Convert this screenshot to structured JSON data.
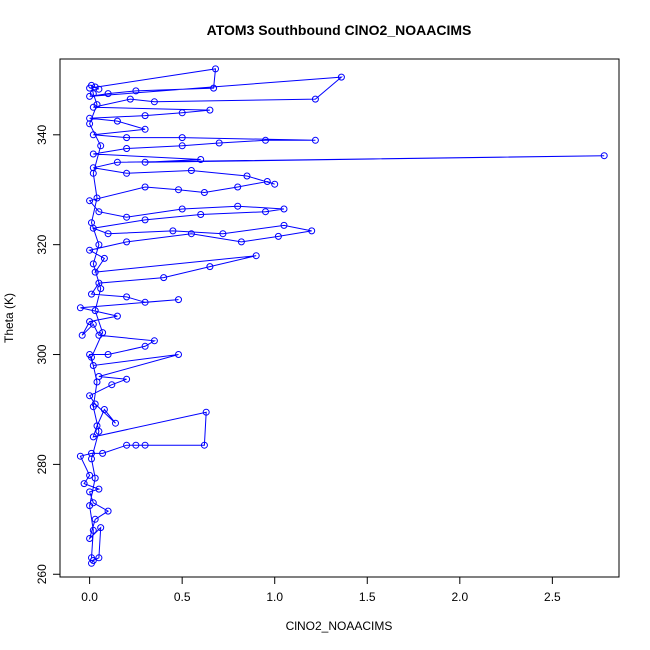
{
  "chart_data": {
    "type": "scatter",
    "title": "ATOM3 Southbound ClNO2_NOAACIMS",
    "xlabel": "ClNO2_NOAACIMS",
    "ylabel": "Theta (K)",
    "xlim": [
      -0.16,
      2.86
    ],
    "ylim": [
      259.5,
      353.8
    ],
    "x_ticks": [
      "0.0",
      "0.5",
      "1.0",
      "1.5",
      "2.0",
      "2.5"
    ],
    "y_ticks": [
      "260",
      "280",
      "300",
      "320",
      "340"
    ],
    "x_tick_values": [
      0,
      0.5,
      1.0,
      1.5,
      2.0,
      2.5
    ],
    "y_tick_values": [
      260,
      280,
      300,
      320,
      340
    ],
    "grid": false,
    "marker": "open-circle",
    "line": "connected",
    "color": "#0000ff",
    "points": [
      [
        0.01,
        262.0
      ],
      [
        0.02,
        262.5
      ],
      [
        0.05,
        263.0
      ],
      [
        0.06,
        268.5
      ],
      [
        0.0,
        266.5
      ],
      [
        0.03,
        270.0
      ],
      [
        0.1,
        271.5
      ],
      [
        0.02,
        273.0
      ],
      [
        0.0,
        275.0
      ],
      [
        0.05,
        275.5
      ],
      [
        -0.03,
        276.5
      ],
      [
        0.0,
        278.0
      ],
      [
        -0.05,
        281.5
      ],
      [
        0.01,
        282.0
      ],
      [
        0.07,
        282.0
      ],
      [
        0.2,
        283.5
      ],
      [
        0.25,
        283.5
      ],
      [
        0.3,
        283.5
      ],
      [
        0.62,
        283.5
      ],
      [
        0.63,
        289.5
      ],
      [
        0.02,
        285.0
      ],
      [
        0.04,
        287.0
      ],
      [
        0.08,
        290.0
      ],
      [
        0.14,
        287.5
      ],
      [
        0.03,
        291.0
      ],
      [
        0.0,
        292.5
      ],
      [
        0.12,
        294.5
      ],
      [
        0.2,
        295.5
      ],
      [
        0.05,
        296.0
      ],
      [
        0.48,
        300.0
      ],
      [
        0.02,
        298.0
      ],
      [
        0.0,
        300.0
      ],
      [
        0.1,
        300.0
      ],
      [
        0.3,
        301.5
      ],
      [
        0.35,
        302.5
      ],
      [
        0.05,
        303.5
      ],
      [
        0.02,
        305.5
      ],
      [
        -0.04,
        303.5
      ],
      [
        0.0,
        306.0
      ],
      [
        0.15,
        307.0
      ],
      [
        -0.05,
        308.5
      ],
      [
        0.48,
        310.0
      ],
      [
        0.3,
        309.5
      ],
      [
        0.2,
        310.5
      ],
      [
        0.01,
        311.0
      ],
      [
        0.05,
        313.0
      ],
      [
        0.4,
        314.0
      ],
      [
        0.65,
        316.0
      ],
      [
        0.9,
        318.0
      ],
      [
        0.03,
        315.0
      ],
      [
        0.08,
        317.5
      ],
      [
        0.0,
        319.0
      ],
      [
        0.2,
        320.5
      ],
      [
        0.55,
        322.0
      ],
      [
        0.82,
        320.5
      ],
      [
        1.02,
        321.5
      ],
      [
        1.2,
        322.5
      ],
      [
        1.05,
        323.5
      ],
      [
        0.72,
        322.0
      ],
      [
        0.45,
        322.5
      ],
      [
        0.1,
        322.0
      ],
      [
        0.02,
        323.0
      ],
      [
        0.3,
        324.5
      ],
      [
        0.6,
        325.5
      ],
      [
        0.95,
        326.0
      ],
      [
        1.05,
        326.5
      ],
      [
        0.8,
        327.0
      ],
      [
        0.5,
        326.5
      ],
      [
        0.2,
        325.0
      ],
      [
        0.05,
        326.0
      ],
      [
        0.0,
        328.0
      ],
      [
        0.3,
        330.5
      ],
      [
        0.48,
        330.0
      ],
      [
        0.62,
        329.5
      ],
      [
        0.8,
        330.5
      ],
      [
        0.96,
        331.5
      ],
      [
        1.0,
        331.0
      ],
      [
        0.85,
        332.5
      ],
      [
        0.55,
        333.5
      ],
      [
        0.2,
        333.0
      ],
      [
        0.02,
        334.0
      ],
      [
        0.15,
        335.0
      ],
      [
        2.78,
        336.2
      ],
      [
        0.3,
        335.0
      ],
      [
        0.6,
        335.5
      ],
      [
        0.02,
        336.5
      ],
      [
        0.2,
        337.5
      ],
      [
        0.5,
        338.0
      ],
      [
        0.7,
        338.5
      ],
      [
        0.95,
        339.0
      ],
      [
        1.22,
        339.0
      ],
      [
        0.5,
        339.5
      ],
      [
        0.2,
        339.5
      ],
      [
        0.02,
        340.0
      ],
      [
        0.3,
        341.0
      ],
      [
        0.15,
        342.5
      ],
      [
        0.0,
        343.0
      ],
      [
        0.3,
        343.5
      ],
      [
        0.5,
        344.0
      ],
      [
        0.65,
        344.5
      ],
      [
        0.02,
        345.0
      ],
      [
        0.22,
        346.5
      ],
      [
        0.35,
        346.0
      ],
      [
        1.22,
        346.5
      ],
      [
        1.36,
        350.5
      ],
      [
        0.0,
        347.0
      ],
      [
        0.1,
        347.5
      ],
      [
        0.25,
        348.0
      ],
      [
        0.67,
        348.5
      ],
      [
        0.68,
        352.0
      ],
      [
        0.0,
        348.5
      ],
      [
        0.03,
        348.7
      ],
      [
        0.05,
        348.3
      ],
      [
        0.01,
        349.0
      ],
      [
        0.02,
        347.5
      ],
      [
        0.04,
        345.5
      ],
      [
        0.0,
        342.0
      ],
      [
        0.06,
        338.0
      ],
      [
        0.02,
        333.0
      ],
      [
        0.04,
        328.5
      ],
      [
        0.01,
        324.0
      ],
      [
        0.05,
        320.0
      ],
      [
        0.02,
        316.5
      ],
      [
        0.06,
        312.0
      ],
      [
        0.03,
        308.0
      ],
      [
        0.07,
        304.0
      ],
      [
        0.01,
        299.5
      ],
      [
        0.04,
        295.0
      ],
      [
        0.02,
        290.5
      ],
      [
        0.05,
        286.0
      ],
      [
        0.01,
        281.0
      ],
      [
        0.03,
        277.5
      ],
      [
        0.0,
        272.5
      ],
      [
        0.02,
        268.0
      ],
      [
        0.01,
        263.0
      ]
    ]
  }
}
